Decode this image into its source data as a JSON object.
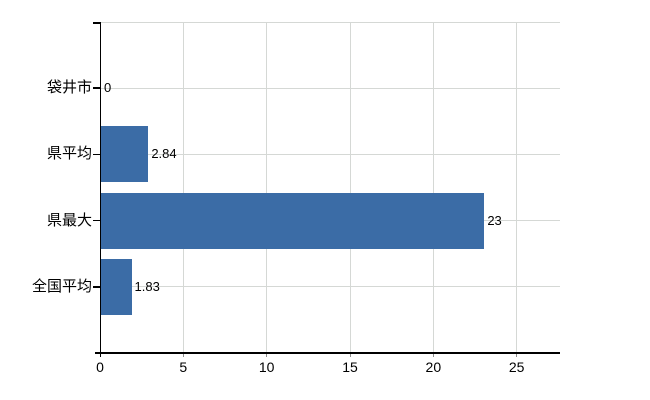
{
  "chart_data": {
    "type": "bar",
    "orientation": "horizontal",
    "categories": [
      "袋井市",
      "県平均",
      "県最大",
      "全国平均"
    ],
    "values": [
      0,
      2.84,
      23,
      1.83
    ],
    "value_labels": [
      "0",
      "2.84",
      "23",
      "1.83"
    ],
    "x_ticks": [
      "0",
      "5",
      "10",
      "15",
      "20",
      "25"
    ],
    "x_tick_values": [
      0,
      5,
      10,
      15,
      20,
      25
    ],
    "xlim": [
      0,
      27.6
    ],
    "grid": true,
    "legend": false,
    "title": "",
    "xlabel": "",
    "ylabel": "",
    "colors": {
      "bar": "#3b6ca6",
      "gridline": "#d5d8d5",
      "axis": "#000000",
      "tick": "#8a8a8a",
      "text": "#000000"
    }
  }
}
